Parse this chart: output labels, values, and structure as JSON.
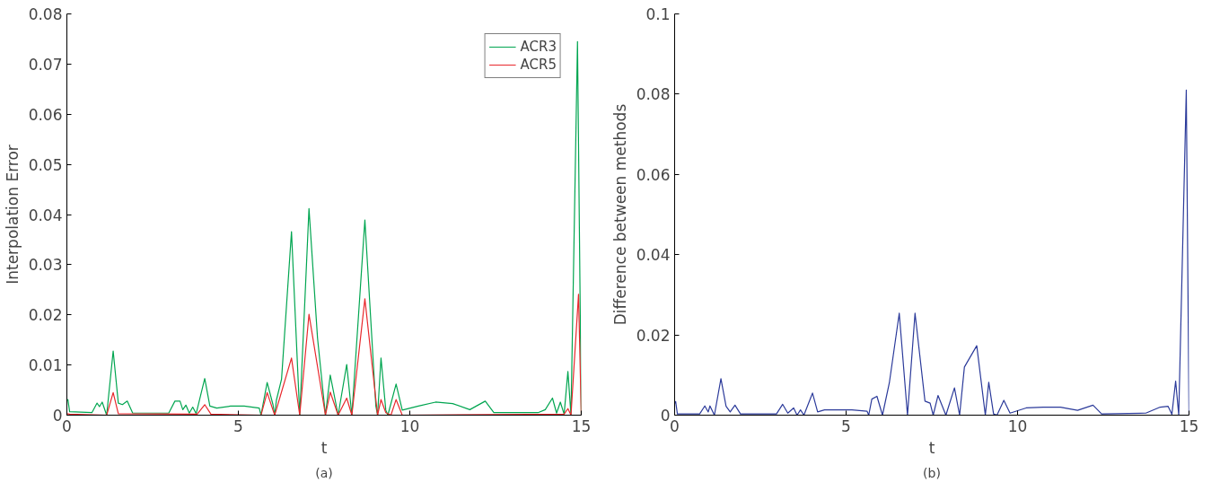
{
  "chart_data": [
    {
      "type": "line",
      "xlabel": "t",
      "ylabel": "Interpolation Error",
      "xlim": [
        0,
        15
      ],
      "ylim": [
        0,
        0.08
      ],
      "xticks": [
        0,
        5,
        10,
        15
      ],
      "yticks": [
        0,
        0.01,
        0.02,
        0.03,
        0.04,
        0.05,
        0.06,
        0.07,
        0.08
      ],
      "grid": false,
      "legend": "top right",
      "annotations": [
        "(a)"
      ],
      "series": [
        {
          "name": "ACR3",
          "color": "#00a550",
          "x": [
            0,
            0.03,
            0.08,
            0.73,
            0.88,
            0.95,
            1.03,
            1.16,
            1.35,
            1.5,
            1.62,
            1.76,
            1.92,
            2.97,
            3.15,
            3.3,
            3.38,
            3.47,
            3.57,
            3.67,
            3.77,
            4.02,
            4.17,
            4.37,
            4.77,
            5.17,
            5.61,
            5.66,
            5.84,
            6.01,
            6.06,
            6.11,
            6.26,
            6.55,
            6.79,
            7.06,
            7.31,
            7.54,
            7.68,
            7.91,
            8.16,
            8.31,
            8.69,
            9.01,
            9.06,
            9.16,
            9.3,
            9.36,
            9.6,
            9.78,
            10.25,
            10.75,
            11.25,
            11.75,
            12.2,
            12.45,
            13.74,
            13.95,
            14.16,
            14.28,
            14.39,
            14.5,
            14.61,
            14.7,
            14.89,
            15
          ],
          "values": [
            0.003,
            0.0031,
            0.0007,
            0.0005,
            0.0024,
            0.0017,
            0.0026,
            0,
            0.0128,
            0.0024,
            0.0021,
            0.0028,
            0.0004,
            0.0004,
            0.0028,
            0.0028,
            0.0011,
            0.002,
            0.0004,
            0.0016,
            0.0003,
            0.0073,
            0.0018,
            0.0014,
            0.0018,
            0.0018,
            0.0014,
            0,
            0.0065,
            0.0021,
            0,
            0.003,
            0.0072,
            0.0366,
            0,
            0.0412,
            0.0153,
            0,
            0.008,
            0,
            0.0101,
            0,
            0.0389,
            0.0018,
            0,
            0.0114,
            0.001,
            0,
            0.0062,
            0.001,
            0.0018,
            0.0026,
            0.0023,
            0.0011,
            0.0028,
            0.0005,
            0.0005,
            0.0011,
            0.0034,
            0.0004,
            0.0026,
            0.0002,
            0.0087,
            0,
            0.0745,
            0
          ]
        },
        {
          "name": "ACR5",
          "color": "#e8282c",
          "x": [
            0,
            0.08,
            1.16,
            1.35,
            1.5,
            3.8,
            4.02,
            4.2,
            5.66,
            5.84,
            6.06,
            6.55,
            6.79,
            7.06,
            7.54,
            7.68,
            7.91,
            8.16,
            8.31,
            8.69,
            9.06,
            9.16,
            9.3,
            9.45,
            9.6,
            9.78,
            14.5,
            14.61,
            14.7,
            14.92,
            15
          ],
          "values": [
            0.0003,
            0.0002,
            0,
            0.0045,
            0.0003,
            0.0002,
            0.0021,
            0.0002,
            0,
            0.0045,
            0,
            0.0114,
            0,
            0.0201,
            0,
            0.0046,
            0,
            0.0034,
            0,
            0.0232,
            0,
            0.0031,
            0.0005,
            0,
            0.0031,
            0,
            0.0002,
            0.0013,
            0,
            0.0241,
            0
          ]
        }
      ]
    },
    {
      "type": "line",
      "xlabel": "t",
      "ylabel": "Difference between methods",
      "xlim": [
        0,
        15
      ],
      "ylim": [
        0,
        0.1
      ],
      "xticks": [
        0,
        5,
        10,
        15
      ],
      "yticks": [
        0,
        0.02,
        0.04,
        0.06,
        0.08,
        0.1
      ],
      "grid": false,
      "legend": false,
      "annotations": [
        "(b)"
      ],
      "series": [
        {
          "color": "#2b3a9a",
          "x": [
            0,
            0.03,
            0.08,
            0.73,
            0.88,
            0.98,
            1.03,
            1.16,
            1.35,
            1.5,
            1.62,
            1.76,
            1.92,
            2.97,
            3.15,
            3.3,
            3.47,
            3.57,
            3.67,
            3.77,
            4.02,
            4.17,
            4.37,
            4.77,
            5.17,
            5.61,
            5.66,
            5.75,
            5.9,
            6.06,
            6.26,
            6.55,
            6.79,
            7.01,
            7.3,
            7.45,
            7.54,
            7.68,
            7.91,
            8.16,
            8.31,
            8.45,
            8.81,
            9.06,
            9.16,
            9.3,
            9.4,
            9.6,
            9.78,
            10.25,
            10.75,
            11.25,
            11.75,
            12.2,
            12.45,
            13.74,
            14.16,
            14.39,
            14.5,
            14.61,
            14.7,
            14.92,
            15
          ],
          "values": [
            0.003,
            0.0034,
            0.0003,
            0.0003,
            0.0023,
            0.0008,
            0.0023,
            0,
            0.0091,
            0.0022,
            0.0008,
            0.0025,
            0.0003,
            0.0003,
            0.0027,
            0.0005,
            0.0018,
            0,
            0.0013,
            0,
            0.0055,
            0.0008,
            0.0013,
            0.0013,
            0.0013,
            0.001,
            0,
            0.004,
            0.0047,
            0,
            0.008,
            0.0254,
            0,
            0.0254,
            0.0035,
            0.003,
            0,
            0.0049,
            0,
            0.0068,
            0,
            0.012,
            0.0173,
            0,
            0.0082,
            0.0003,
            0,
            0.0037,
            0.0005,
            0.0018,
            0.002,
            0.002,
            0.0012,
            0.0025,
            0.0003,
            0.0005,
            0.002,
            0.0022,
            0.0002,
            0.0085,
            0,
            0.081,
            0
          ]
        }
      ]
    }
  ]
}
